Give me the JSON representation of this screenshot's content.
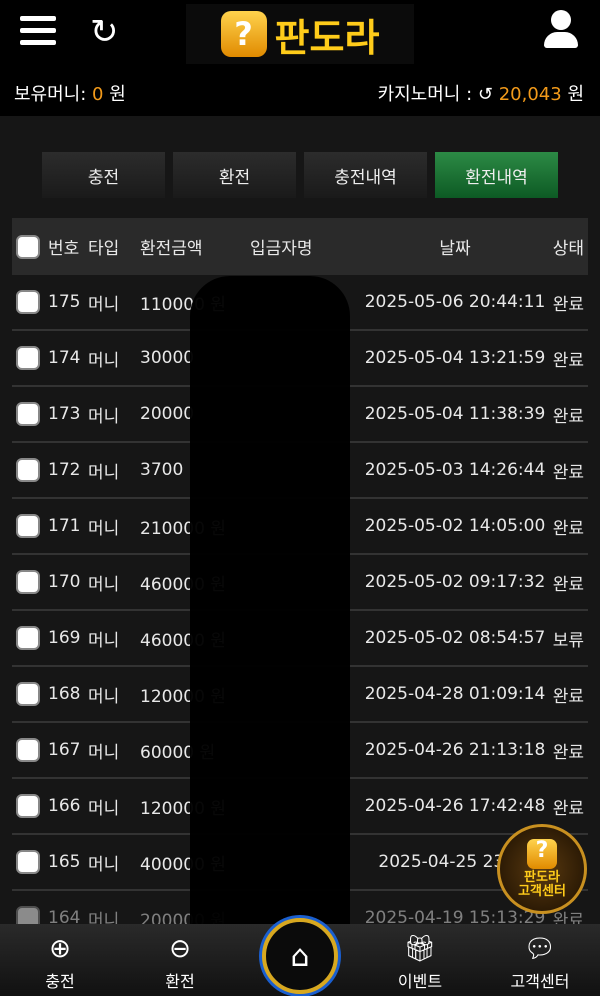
{
  "header": {
    "logo_text": "판도라",
    "balance_label": "보유머니:",
    "balance_value": "0",
    "balance_unit": "원",
    "casino_label": "카지노머니 :",
    "casino_value": "20,043",
    "casino_unit": "원"
  },
  "tabs": [
    {
      "label": "충전"
    },
    {
      "label": "환전"
    },
    {
      "label": "충전내역"
    },
    {
      "label": "환전내역",
      "active": true
    }
  ],
  "table": {
    "headers": [
      "번호",
      "타입",
      "환전금액",
      "입금자명",
      "날짜",
      "상태"
    ],
    "rows": [
      {
        "no": "175",
        "type": "머니",
        "amount": "110000 원",
        "date": "2025-05-06 20:44:11",
        "status": "완료"
      },
      {
        "no": "174",
        "type": "머니",
        "amount": "30000",
        "date": "2025-05-04 13:21:59",
        "status": "완료"
      },
      {
        "no": "173",
        "type": "머니",
        "amount": "20000",
        "date": "2025-05-04 11:38:39",
        "status": "완료"
      },
      {
        "no": "172",
        "type": "머니",
        "amount": "3700",
        "date": "2025-05-03 14:26:44",
        "status": "완료"
      },
      {
        "no": "171",
        "type": "머니",
        "amount": "210000 원",
        "date": "2025-05-02 14:05:00",
        "status": "완료"
      },
      {
        "no": "170",
        "type": "머니",
        "amount": "460000 원",
        "date": "2025-05-02 09:17:32",
        "status": "완료"
      },
      {
        "no": "169",
        "type": "머니",
        "amount": "460000 원",
        "date": "2025-05-02 08:54:57",
        "status": "보류"
      },
      {
        "no": "168",
        "type": "머니",
        "amount": "120000 원",
        "date": "2025-04-28 01:09:14",
        "status": "완료"
      },
      {
        "no": "167",
        "type": "머니",
        "amount": "60000 원",
        "date": "2025-04-26 21:13:18",
        "status": "완료"
      },
      {
        "no": "166",
        "type": "머니",
        "amount": "120000 원",
        "date": "2025-04-26 17:42:48",
        "status": "완료"
      },
      {
        "no": "165",
        "type": "머니",
        "amount": "400000 원",
        "date": "2025-04-25 23:29",
        "status": ""
      },
      {
        "no": "164",
        "type": "머니",
        "amount": "200000 원",
        "date": "2025-04-19 15:13:29",
        "status": "완료"
      }
    ]
  },
  "support_badge": {
    "line1": "판도라",
    "line2": "고객센터"
  },
  "bottom_nav": [
    {
      "label": "충전",
      "icon": "piggy-plus-icon"
    },
    {
      "label": "환전",
      "icon": "piggy-minus-icon"
    },
    {
      "label": "",
      "icon": "home-icon"
    },
    {
      "label": "이벤트",
      "icon": "gift-icon"
    },
    {
      "label": "고객센터",
      "icon": "headset-chat-icon"
    }
  ],
  "colors": {
    "accent": "#f29a1a",
    "active_tab": "#1f7a3a"
  }
}
